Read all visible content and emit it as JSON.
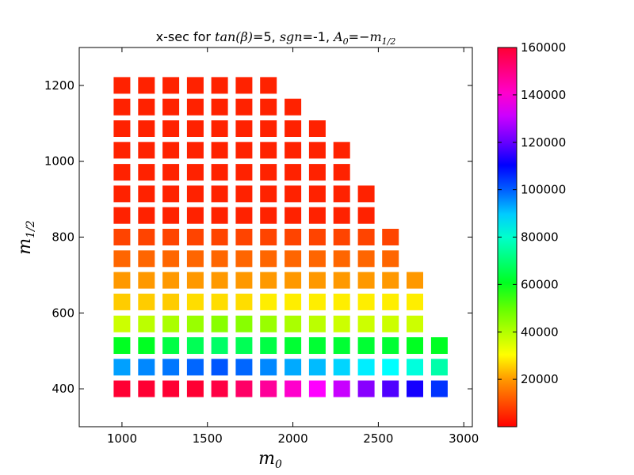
{
  "chart_data": {
    "type": "heatmap",
    "title_parts": [
      "x-sec for ",
      "tan(β)",
      "=5, ",
      "sgn",
      "=-1, ",
      "A",
      "0",
      "=−",
      "m",
      "1/2"
    ],
    "xlabel_main": "m",
    "xlabel_sub": "0",
    "ylabel_main": "m",
    "ylabel_sub": "1/2",
    "xlim": [
      750,
      3050
    ],
    "ylim": [
      300,
      1300
    ],
    "xticks": [
      1000,
      1500,
      2000,
      2500,
      3000
    ],
    "xtick_labels": [
      "1000",
      "1500",
      "2000",
      "2500",
      "3000"
    ],
    "yticks": [
      400,
      600,
      800,
      1000,
      1200
    ],
    "ytick_labels": [
      "400",
      "600",
      "800",
      "1000",
      "1200"
    ],
    "x": [
      1000,
      1143,
      1286,
      1429,
      1571,
      1714,
      1857,
      2000,
      2143,
      2286,
      2429,
      2571,
      2714,
      2857
    ],
    "y": [
      400,
      457,
      514,
      571,
      629,
      686,
      743,
      800,
      857,
      914,
      971,
      1029,
      1086,
      1143,
      1200
    ],
    "max_y_per_column": [
      1200,
      1200,
      1200,
      1200,
      1200,
      1200,
      1200,
      1143,
      1086,
      1029,
      914,
      800,
      686,
      514
    ],
    "colorbar": {
      "colormap": "gist_rainbow_r",
      "min": 0,
      "max": 160000,
      "ticks": [
        20000,
        40000,
        60000,
        80000,
        100000,
        120000,
        140000,
        160000
      ],
      "tick_labels": [
        "20000",
        "40000",
        "60000",
        "80000",
        "100000",
        "120000",
        "140000",
        "160000"
      ]
    },
    "cell_colors": {
      "400": [
        "#ff0033",
        "#ff0033",
        "#ff0033",
        "#ff0033",
        "#ff0044",
        "#ff0066",
        "#ff0099",
        "#ff00cc",
        "#ff00ff",
        "#c800ff",
        "#8800ff",
        "#5000ff",
        "#1500ff",
        "#0033ff"
      ],
      "457": [
        "#00a0ff",
        "#0088ff",
        "#0077ff",
        "#0066ff",
        "#0055ff",
        "#0066ff",
        "#0088ff",
        "#00aaff",
        "#00bbff",
        "#00d5ff",
        "#00eeff",
        "#00ffff",
        "#00ffdd",
        "#00ffaa"
      ],
      "514": [
        "#00ff22",
        "#00ff22",
        "#00ff44",
        "#00ff55",
        "#00ff66",
        "#00ff55",
        "#00ff44",
        "#00ff33",
        "#00ff33",
        "#00ff33",
        "#00ff33",
        "#00ff33",
        "#00ff22",
        "#00ff22"
      ],
      "571": [
        "#ccff00",
        "#bbff00",
        "#aaff00",
        "#99ff00",
        "#88ff00",
        "#88ff00",
        "#99ff00",
        "#aaff00",
        "#bbff00",
        "#ccff00",
        "#ccff00",
        "#ccff00",
        "#ccff00"
      ],
      "629": [
        "#ffcc00",
        "#ffcc00",
        "#ffcc00",
        "#ffdd00",
        "#ffdd00",
        "#ffdd00",
        "#ffee00",
        "#ffee00",
        "#ffee00",
        "#ffee00",
        "#ffee00",
        "#ffee00",
        "#ffee00"
      ],
      "686": [
        "#ff9900",
        "#ff9900",
        "#ff9900",
        "#ff9900",
        "#ff9900",
        "#ff9900",
        "#ff9900",
        "#ff9900",
        "#ff9900",
        "#ff9900",
        "#ff9900",
        "#ff9900",
        "#ff9900"
      ],
      "743": [
        "#ff6600",
        "#ff6600",
        "#ff6600",
        "#ff6600",
        "#ff6600",
        "#ff6600",
        "#ff6600",
        "#ff6600",
        "#ff6600",
        "#ff6600",
        "#ff6600",
        "#ff6600"
      ],
      "800": [
        "#ff4400",
        "#ff4400",
        "#ff4400",
        "#ff4400",
        "#ff4400",
        "#ff4400",
        "#ff4400",
        "#ff4400",
        "#ff4400",
        "#ff4400",
        "#ff4400",
        "#ff4400"
      ],
      "default": "#ff2200"
    }
  }
}
